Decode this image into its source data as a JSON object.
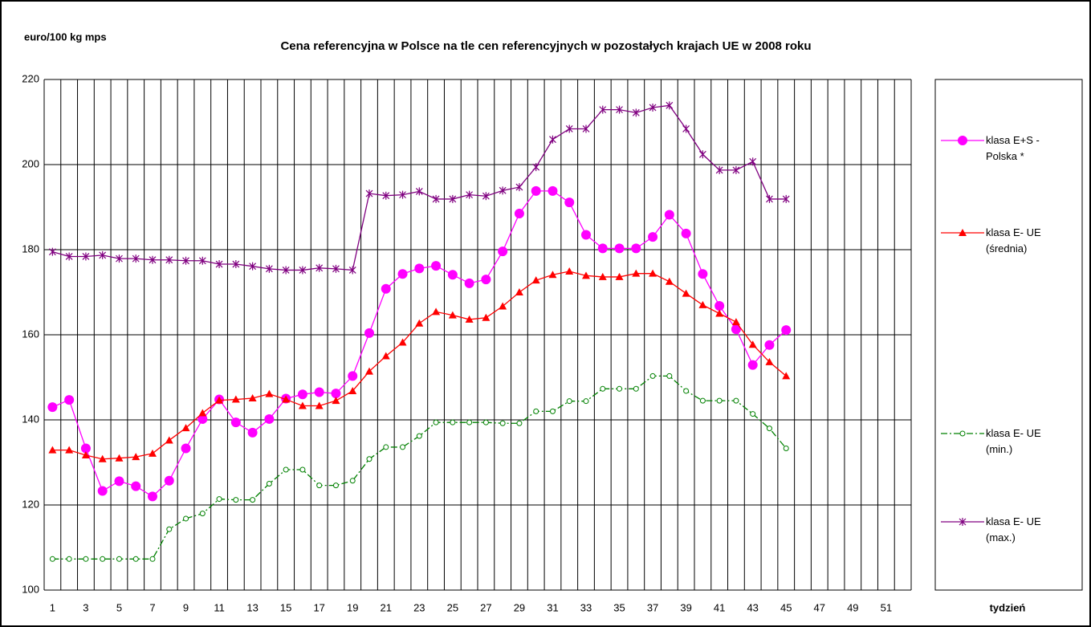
{
  "chart_data": {
    "type": "line",
    "title": "Cena referencyjna w Polsce na tle cen referencyjnych w pozostałych krajach UE w 2008 roku",
    "y_label": "euro/100 kg mps",
    "x_label": "tydzień",
    "categories": [
      "1",
      null,
      "3",
      null,
      "5",
      null,
      "7",
      null,
      "9",
      null,
      "11",
      null,
      "13",
      null,
      "15",
      null,
      "17",
      null,
      "19",
      null,
      "21",
      null,
      "23",
      null,
      "25",
      null,
      "27",
      null,
      "29",
      null,
      "31",
      null,
      "33",
      null,
      "35",
      null,
      "37",
      null,
      "39",
      null,
      "41",
      null,
      "43",
      null,
      "45",
      null,
      "47",
      null,
      "49",
      null,
      "51",
      null
    ],
    "ylim": [
      100,
      220
    ],
    "yticks": [
      100,
      120,
      140,
      160,
      180,
      200,
      220
    ],
    "grid": true,
    "series": [
      {
        "name": "klasa E+S - Polska *",
        "color": "#ff00ff",
        "marker": "circle",
        "values": [
          143,
          144.7,
          133.3,
          123.3,
          125.6,
          124.4,
          122,
          125.7,
          133.3,
          140.2,
          144.8,
          139.4,
          137,
          140.2,
          145,
          146,
          146.5,
          146.2,
          150.3,
          160.4,
          170.8,
          174.3,
          175.6,
          176.2,
          174.1,
          172.1,
          173,
          179.6,
          188.5,
          193.8,
          193.8,
          191.1,
          183.5,
          180.3,
          180.3,
          180.3,
          183,
          188.2,
          183.8,
          174.3,
          166.8,
          161.3,
          152.9,
          157.6,
          161.1,
          null,
          null,
          null,
          null,
          null,
          null,
          null
        ]
      },
      {
        "name": "klasa E- UE (średnia)",
        "color": "#ff0000",
        "marker": "triangle",
        "values": [
          132.9,
          132.9,
          131.7,
          130.8,
          131,
          131.3,
          132.1,
          135.2,
          138.1,
          141.6,
          144.6,
          144.8,
          145.1,
          146.1,
          144.8,
          143.3,
          143.3,
          144.5,
          146.8,
          151.4,
          155,
          158.2,
          162.7,
          165.4,
          164.6,
          163.6,
          164,
          166.7,
          170,
          172.8,
          174.1,
          174.9,
          173.9,
          173.6,
          173.6,
          174.4,
          174.4,
          172.5,
          169.7,
          167,
          165,
          163,
          157.7,
          153.6,
          150.3,
          null,
          null,
          null,
          null,
          null,
          null,
          null
        ]
      },
      {
        "name": "klasa E- UE (min.)",
        "color": "#008000",
        "marker": "open-circle",
        "dash": true,
        "values": [
          107.3,
          107.3,
          107.3,
          107.3,
          107.3,
          107.3,
          107.3,
          114.3,
          116.8,
          118,
          121.4,
          121.2,
          121.2,
          125,
          128.3,
          128.3,
          124.6,
          124.6,
          125.7,
          130.8,
          133.6,
          133.6,
          136.2,
          139.4,
          139.4,
          139.4,
          139.4,
          139.2,
          139.2,
          142,
          142,
          144.4,
          144.4,
          147.3,
          147.3,
          147.3,
          150.3,
          150.3,
          146.8,
          144.5,
          144.5,
          144.5,
          141.4,
          138,
          133.3,
          null,
          null,
          null,
          null,
          null,
          null,
          null
        ]
      },
      {
        "name": "klasa E- UE (max.)",
        "color": "#800080",
        "marker": "star",
        "values": [
          179.5,
          178.4,
          178.4,
          178.7,
          177.9,
          177.9,
          177.6,
          177.6,
          177.4,
          177.4,
          176.6,
          176.6,
          176.1,
          175.5,
          175.2,
          175.2,
          175.7,
          175.5,
          175.2,
          193.2,
          192.7,
          192.9,
          193.7,
          191.9,
          191.9,
          192.9,
          192.6,
          193.9,
          194.7,
          199.4,
          205.9,
          208.4,
          208.4,
          212.9,
          212.9,
          212.2,
          213.4,
          213.9,
          208.4,
          202.4,
          198.7,
          198.7,
          200.7,
          191.9,
          191.9,
          null,
          null,
          null,
          null,
          null,
          null,
          null
        ]
      }
    ]
  }
}
